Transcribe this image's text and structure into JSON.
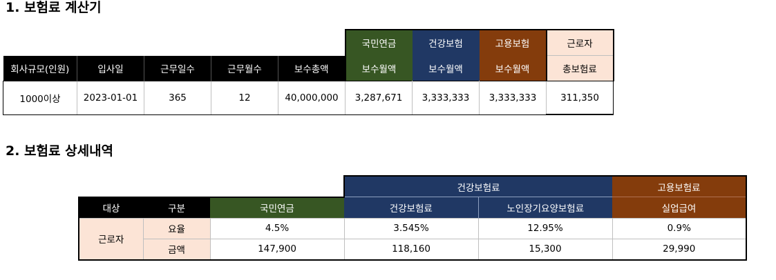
{
  "section1": {
    "title": "1. 보험료 계산기",
    "group_headers": {
      "pension": "국민연금",
      "health": "건강보험",
      "employment": "고용보험",
      "worker": "근로자"
    },
    "columns": [
      "회사규모(인원)",
      "입사일",
      "근무일수",
      "근무월수",
      "보수총액",
      "보수월액",
      "보수월액",
      "보수월액",
      "총보험료"
    ],
    "row": [
      "1000이상",
      "2023-01-01",
      "365",
      "12",
      "40,000,000",
      "3,287,671",
      "3,333,333",
      "3,333,333",
      "311,350"
    ]
  },
  "section2": {
    "title": "2. 보험료 상세내역",
    "group_headers": {
      "health": "건강보험료",
      "employment": "고용보험료"
    },
    "columns": [
      "대상",
      "구분",
      "국민연금",
      "건강보험료",
      "노인장기요양보험료",
      "실업급여"
    ],
    "target": "근로자",
    "rows": [
      {
        "label": "요율",
        "values": [
          "4.5%",
          "3.545%",
          "12.95%",
          "0.9%"
        ]
      },
      {
        "label": "금액",
        "values": [
          "147,900",
          "118,160",
          "15,300",
          "29,990"
        ]
      }
    ]
  },
  "colors": {
    "header_black": "#000000",
    "pension_green": "#375623",
    "health_blue": "#203864",
    "employment_brown": "#843C0C",
    "worker_peach": "#FCE4D6"
  }
}
